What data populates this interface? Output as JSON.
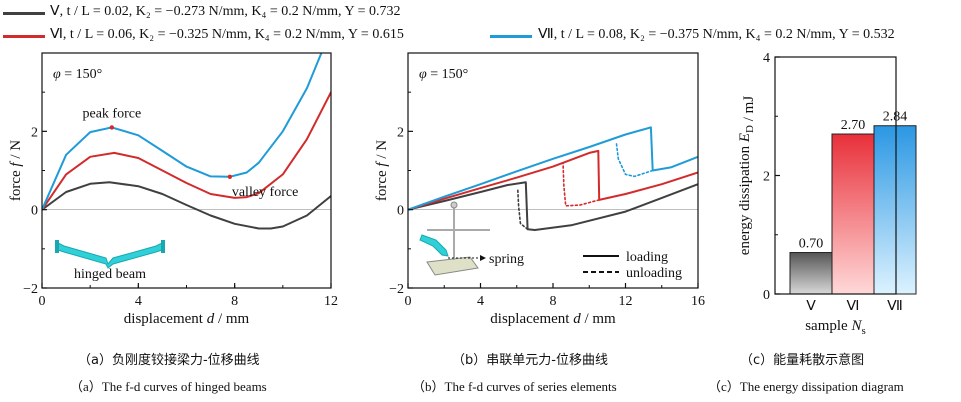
{
  "legend": [
    {
      "roman": "Ⅴ",
      "text": ", t / L = 0.02, K₂ = −0.273 N/mm, K₄ = 0.2 N/mm, Y = 0.732",
      "color": "#404040"
    },
    {
      "roman": "Ⅵ",
      "text": ", t / L = 0.06, K₂ = −0.325 N/mm, K₄ = 0.2 N/mm, Y = 0.615",
      "color": "#d32b2b"
    },
    {
      "roman": "Ⅶ",
      "text": ", t / L = 0.08, K₂ = −0.375 N/mm, K₄ = 0.2 N/mm, Y = 0.532",
      "color": "#1f9bd8"
    }
  ],
  "captions": {
    "a_zh": "（a）负刚度铰接梁力-位移曲线",
    "b_zh": "（b）串联单元力-位移曲线",
    "c_zh": "（c）能量耗散示意图",
    "a_en": "（a）The f-d curves of hinged beams",
    "b_en": "（b）The f-d curves of series elements",
    "c_en": "（c）The energy dissipation diagram"
  },
  "chart_data": [
    {
      "type": "line",
      "panel": "a",
      "annotation_phi": "φ = 150°",
      "xlabel": "displacement d / mm",
      "ylabel": "force f / N",
      "xlim": [
        0,
        12
      ],
      "ylim": [
        -2,
        4
      ],
      "xticks": [
        "0",
        "4",
        "8",
        "12"
      ],
      "yticks": [
        "−2",
        "0",
        "2"
      ],
      "annotations": [
        "peak force",
        "valley force",
        "hinged beam"
      ],
      "series": [
        {
          "name": "Ⅴ",
          "color": "#404040",
          "x": [
            0,
            1,
            2,
            2.8,
            4,
            5,
            6,
            7,
            8,
            9,
            9.5,
            10,
            11,
            12
          ],
          "y": [
            0,
            0.45,
            0.66,
            0.7,
            0.6,
            0.4,
            0.12,
            -0.15,
            -0.36,
            -0.48,
            -0.48,
            -0.43,
            -0.15,
            0.35
          ]
        },
        {
          "name": "Ⅵ",
          "color": "#d32b2b",
          "x": [
            0,
            1,
            2,
            3,
            4,
            5,
            6,
            7,
            8,
            8.5,
            9,
            10,
            11,
            12
          ],
          "y": [
            0,
            0.9,
            1.35,
            1.45,
            1.32,
            1.0,
            0.68,
            0.4,
            0.3,
            0.32,
            0.42,
            0.9,
            1.8,
            3.0
          ]
        },
        {
          "name": "Ⅶ",
          "color": "#1f9bd8",
          "x": [
            0,
            1,
            2,
            2.9,
            4,
            5,
            6,
            7,
            7.8,
            8.5,
            9,
            10,
            11,
            11.6
          ],
          "y": [
            0,
            1.4,
            1.98,
            2.1,
            1.9,
            1.5,
            1.1,
            0.85,
            0.84,
            0.95,
            1.2,
            2.0,
            3.1,
            4.0
          ]
        }
      ]
    },
    {
      "type": "line",
      "panel": "b",
      "annotation_phi": "φ = 150°",
      "xlabel": "displacement d / mm",
      "ylabel": "force f / N",
      "xlim": [
        0,
        16
      ],
      "ylim": [
        -2,
        4
      ],
      "xticks": [
        "0",
        "4",
        "8",
        "12",
        "16"
      ],
      "yticks": [
        "−2",
        "0",
        "2"
      ],
      "annotations": [
        "spring"
      ],
      "style_legend": [
        {
          "label": "loading",
          "dash": "solid"
        },
        {
          "label": "unloading",
          "dash": "dashed"
        }
      ],
      "series": [
        {
          "name": "Ⅴ loading",
          "color": "#404040",
          "dash": "solid",
          "x": [
            0,
            2,
            4,
            5.5,
            6.5,
            6.6,
            7,
            9,
            12,
            14,
            16
          ],
          "y": [
            0,
            0.22,
            0.45,
            0.63,
            0.7,
            -0.5,
            -0.52,
            -0.4,
            -0.05,
            0.3,
            0.65
          ]
        },
        {
          "name": "Ⅴ unloading",
          "color": "#404040",
          "dash": "dotted",
          "x": [
            6.6,
            6.2,
            6.1,
            6.05
          ],
          "y": [
            -0.5,
            -0.35,
            0.1,
            0.55
          ]
        },
        {
          "name": "Ⅵ loading",
          "color": "#d32b2b",
          "dash": "solid",
          "x": [
            0,
            2,
            4,
            6,
            8,
            10,
            10.5,
            10.55,
            12,
            14,
            16
          ],
          "y": [
            0,
            0.28,
            0.55,
            0.82,
            1.1,
            1.45,
            1.5,
            0.25,
            0.4,
            0.65,
            0.95
          ]
        },
        {
          "name": "Ⅵ unloading",
          "color": "#d32b2b",
          "dash": "dotted",
          "x": [
            10.55,
            9.5,
            8.7,
            8.6,
            8.55
          ],
          "y": [
            0.25,
            0.12,
            0.1,
            0.6,
            1.2
          ]
        },
        {
          "name": "Ⅶ loading",
          "color": "#1f9bd8",
          "dash": "solid",
          "x": [
            0,
            2,
            4,
            6,
            8,
            10,
            12,
            13.4,
            13.5,
            14.5,
            16
          ],
          "y": [
            0,
            0.33,
            0.65,
            0.98,
            1.3,
            1.6,
            1.92,
            2.1,
            1.0,
            1.08,
            1.35
          ]
        },
        {
          "name": "Ⅶ unloading",
          "color": "#1f9bd8",
          "dash": "dotted",
          "x": [
            13.5,
            12.5,
            12,
            11.6,
            11.5
          ],
          "y": [
            1.0,
            0.85,
            0.9,
            1.3,
            1.7
          ]
        }
      ]
    },
    {
      "type": "bar",
      "panel": "c",
      "categories": [
        "Ⅴ",
        "Ⅵ",
        "Ⅶ"
      ],
      "values": [
        0.7,
        2.7,
        2.84
      ],
      "value_labels": [
        "0.70",
        "2.70",
        "2.84"
      ],
      "xlabel": "sample N_s",
      "ylabel": "energy dissipation E_D / mJ",
      "ylim": [
        0,
        4
      ],
      "yticks": [
        "0",
        "2",
        "4"
      ],
      "colors": [
        "#555555",
        "#e8303a",
        "#2b97e3"
      ]
    }
  ]
}
